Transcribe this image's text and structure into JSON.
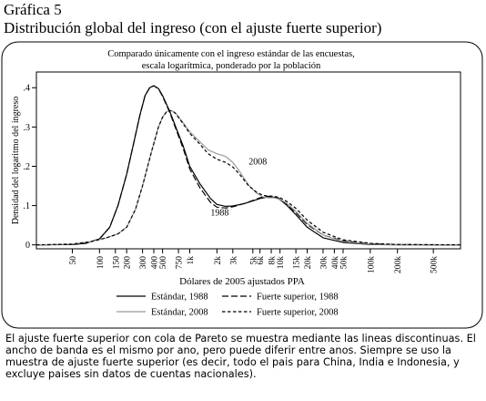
{
  "figure": {
    "label": "Gráfica 5",
    "title": "Distribución global del ingreso (con el ajuste fuerte superior)",
    "caption": "El ajuste fuerte superior con cola de Pareto se muestra mediante las lineas discontinuas. El ancho de banda es el mismo por ano, pero puede diferir entre anos. Siempre se uso la muestra de ajuste fuerte superior (es decir, todo el pais para China, India e Indonesia, y excluye paises sin datos de cuentas nacionales)."
  },
  "chart_data": {
    "type": "line",
    "subtitle": [
      "Comparado únicamente con el ingreso estándar de las encuestas,",
      "escala logarítmica, ponderado por la población"
    ],
    "xlabel": "Dólares de 2005 ajustados PPA",
    "ylabel": "Densidad del logaritmo del ingreso",
    "x_scale": "log",
    "xlim": [
      20,
      1000000
    ],
    "ylim": [
      -0.01,
      0.44
    ],
    "y_ticks": [
      0,
      0.1,
      0.2,
      0.3,
      0.4
    ],
    "y_tick_labels": [
      "0",
      ".1",
      ".2",
      ".3",
      ".4"
    ],
    "x_ticks": [
      50,
      100,
      150,
      200,
      300,
      400,
      500,
      750,
      1000,
      2000,
      3000,
      5000,
      6000,
      8000,
      10000,
      15000,
      20000,
      30000,
      40000,
      50000,
      100000,
      200000,
      500000
    ],
    "x_tick_labels": [
      "50",
      "100",
      "150",
      "200",
      "300",
      "400",
      "500",
      "750",
      "1k",
      "2k",
      "3k",
      "5k",
      "6k",
      "8k",
      "10k",
      "15k",
      "20k",
      "30k",
      "40k",
      "50k",
      "100k",
      "200k",
      "500k"
    ],
    "annotations": [
      {
        "text": "2008",
        "x": 4500,
        "y": 0.205
      },
      {
        "text": "1988",
        "x": 1700,
        "y": 0.075
      }
    ],
    "legend_position": "bottom",
    "series": [
      {
        "name": "Estándar, 1988",
        "color": "#000000",
        "dash": "solid",
        "x": [
          20,
          50,
          70,
          100,
          130,
          160,
          200,
          240,
          280,
          320,
          360,
          400,
          450,
          500,
          600,
          700,
          850,
          1000,
          1300,
          1700,
          2000,
          2500,
          3000,
          4000,
          5000,
          6000,
          7000,
          8000,
          9000,
          10000,
          12000,
          15000,
          20000,
          30000,
          50000,
          100000,
          200000,
          1000000
        ],
        "y": [
          0,
          0.001,
          0.004,
          0.015,
          0.045,
          0.1,
          0.18,
          0.26,
          0.33,
          0.38,
          0.4,
          0.405,
          0.398,
          0.38,
          0.34,
          0.3,
          0.25,
          0.2,
          0.155,
          0.118,
          0.103,
          0.098,
          0.099,
          0.105,
          0.112,
          0.118,
          0.121,
          0.122,
          0.12,
          0.115,
          0.1,
          0.077,
          0.045,
          0.018,
          0.006,
          0.001,
          0,
          0
        ]
      },
      {
        "name": "Fuerte superior, 1988",
        "color": "#000000",
        "dash": "long",
        "x": [
          20,
          50,
          70,
          100,
          130,
          160,
          200,
          240,
          280,
          320,
          360,
          400,
          450,
          500,
          600,
          700,
          850,
          1000,
          1300,
          1700,
          2000,
          2500,
          3000,
          4000,
          5000,
          6000,
          7000,
          8000,
          9000,
          10000,
          12000,
          15000,
          20000,
          30000,
          50000,
          100000,
          200000,
          1000000
        ],
        "y": [
          0,
          0.001,
          0.004,
          0.015,
          0.045,
          0.1,
          0.18,
          0.26,
          0.33,
          0.38,
          0.4,
          0.405,
          0.397,
          0.378,
          0.337,
          0.296,
          0.244,
          0.193,
          0.145,
          0.108,
          0.096,
          0.094,
          0.097,
          0.105,
          0.113,
          0.12,
          0.123,
          0.124,
          0.122,
          0.117,
          0.103,
          0.082,
          0.052,
          0.025,
          0.01,
          0.003,
          0.001,
          0
        ]
      },
      {
        "name": "Estándar, 2008",
        "color": "#9a9a9a",
        "dash": "solid",
        "x": [
          20,
          50,
          80,
          120,
          160,
          200,
          250,
          300,
          380,
          450,
          500,
          550,
          600,
          650,
          700,
          800,
          1000,
          1300,
          1600,
          2000,
          2500,
          3000,
          3500,
          4500,
          5500,
          6500,
          7500,
          8500,
          10000,
          12000,
          15000,
          20000,
          30000,
          50000,
          100000,
          200000,
          1000000
        ],
        "y": [
          0,
          0.002,
          0.008,
          0.018,
          0.028,
          0.045,
          0.09,
          0.15,
          0.24,
          0.3,
          0.325,
          0.338,
          0.342,
          0.34,
          0.335,
          0.318,
          0.288,
          0.262,
          0.242,
          0.232,
          0.225,
          0.21,
          0.19,
          0.152,
          0.132,
          0.122,
          0.12,
          0.12,
          0.116,
          0.105,
          0.085,
          0.055,
          0.025,
          0.008,
          0.002,
          0,
          0
        ]
      },
      {
        "name": "Fuerte superior, 2008",
        "color": "#000000",
        "dash": "short",
        "x": [
          20,
          50,
          80,
          120,
          160,
          200,
          250,
          300,
          380,
          450,
          500,
          550,
          600,
          650,
          700,
          800,
          1000,
          1300,
          1600,
          2000,
          2500,
          3000,
          3500,
          4500,
          5500,
          6500,
          7500,
          8500,
          10000,
          12000,
          15000,
          20000,
          30000,
          50000,
          100000,
          200000,
          1000000
        ],
        "y": [
          0,
          0.002,
          0.008,
          0.018,
          0.028,
          0.045,
          0.09,
          0.15,
          0.24,
          0.3,
          0.325,
          0.338,
          0.342,
          0.34,
          0.334,
          0.316,
          0.284,
          0.256,
          0.232,
          0.218,
          0.21,
          0.198,
          0.182,
          0.15,
          0.134,
          0.126,
          0.124,
          0.124,
          0.12,
          0.11,
          0.093,
          0.063,
          0.032,
          0.013,
          0.004,
          0.001,
          0
        ]
      }
    ]
  }
}
